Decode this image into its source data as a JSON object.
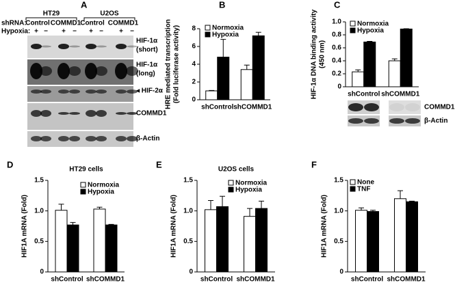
{
  "blot": {
    "panel": "A",
    "cell_lines": [
      "HT29",
      "U2OS"
    ],
    "shrna_label": "shRNA:",
    "shrna": [
      "Control",
      "COMMD1",
      "Control",
      "COMMD1"
    ],
    "hypoxia_label": "Hypoxia:",
    "hypoxia": [
      "+",
      "−",
      "+",
      "−",
      "+",
      "−",
      "+",
      "−"
    ],
    "bands": [
      [
        "HIF-1α",
        "(short)"
      ],
      [
        "HIF-1α",
        "(long)"
      ],
      [
        "◂ HIF-2α"
      ],
      [
        "COMMD1"
      ],
      [
        "β-Actin"
      ]
    ]
  },
  "chart_data": [
    {
      "type": "bar",
      "panel": "B",
      "y_label": [
        "HRE mediated transcription",
        "(Fold luciferase activity)"
      ],
      "categories": [
        "shControl",
        "shCOMMD1"
      ],
      "ylim": [
        0,
        8
      ],
      "yticks": [
        0,
        2,
        4,
        6,
        8
      ],
      "series": [
        {
          "name": "Normoxia",
          "color": "#ffffff",
          "values": [
            1.0,
            3.4
          ],
          "errors": [
            0.05,
            0.5
          ]
        },
        {
          "name": "Hypoxia",
          "color": "#000000",
          "values": [
            4.8,
            7.2
          ],
          "errors": [
            2.0,
            0.4
          ]
        }
      ]
    },
    {
      "type": "bar",
      "panel": "C",
      "y_label": [
        "HIF-1α DNA binding activity",
        "(450 nm)"
      ],
      "categories": [
        "shControl",
        "shCOMMD1"
      ],
      "ylim": [
        0,
        1
      ],
      "yticks": [
        0,
        {
          "value": 0.2,
          "label": "0.2"
        },
        {
          "value": 0.4,
          "label": "0.4"
        },
        {
          "value": 0.6,
          "label": "0.6"
        },
        {
          "value": 0.8,
          "label": "0.8"
        },
        {
          "value": 1,
          "label": "1.0"
        }
      ],
      "series": [
        {
          "name": "Normoxia",
          "color": "#ffffff",
          "values": [
            0.23,
            0.4
          ],
          "errors": [
            0.03,
            0.03
          ]
        },
        {
          "name": "Hypoxia",
          "color": "#000000",
          "values": [
            0.69,
            0.89
          ],
          "errors": [
            0.01,
            0.005
          ]
        }
      ],
      "blot_labels": [
        "COMMD1",
        "β-Actin"
      ]
    },
    {
      "type": "bar",
      "panel": "D",
      "title": "HT29 cells",
      "y_label": [
        "HIF1A mRNA (Fold)"
      ],
      "categories": [
        "shControl",
        "shCOMMD1"
      ],
      "ylim": [
        0,
        1.5
      ],
      "yticks": [
        0,
        0.5,
        {
          "value": 1,
          "label": "1.0"
        },
        1.5
      ],
      "series": [
        {
          "name": "Normoxia",
          "color": "#ffffff",
          "values": [
            1.01,
            1.03
          ],
          "errors": [
            0.1,
            0.03
          ]
        },
        {
          "name": "Hypoxia",
          "color": "#000000",
          "values": [
            0.77,
            0.77
          ],
          "errors": [
            0.04,
            0.01
          ]
        }
      ]
    },
    {
      "type": "bar",
      "panel": "E",
      "title": "U2OS cells",
      "y_label": [
        "HIF1A mRNA (Fold)"
      ],
      "categories": [
        "shControl",
        "shCOMMD1"
      ],
      "ylim": [
        0,
        1.5
      ],
      "yticks": [
        0,
        0.5,
        {
          "value": 1,
          "label": "1.0"
        },
        1.5
      ],
      "series": [
        {
          "name": "Normoxia",
          "color": "#ffffff",
          "values": [
            1.02,
            0.91
          ],
          "errors": [
            0.15,
            0.13
          ]
        },
        {
          "name": "Hypoxia",
          "color": "#000000",
          "values": [
            1.07,
            1.04
          ],
          "errors": [
            0.17,
            0.12
          ]
        }
      ]
    },
    {
      "type": "bar",
      "panel": "F",
      "y_label": [
        "HIF1A mRNA (Fold)"
      ],
      "categories": [
        "shControl",
        "shCOMMD1"
      ],
      "ylim": [
        0,
        1.5
      ],
      "yticks": [
        0,
        0.5,
        {
          "value": 1,
          "label": "1.0"
        },
        1.5
      ],
      "series": [
        {
          "name": "None",
          "color": "#ffffff",
          "values": [
            1.01,
            1.2
          ],
          "errors": [
            0.04,
            0.13
          ]
        },
        {
          "name": "TNF",
          "color": "#000000",
          "values": [
            0.99,
            1.15
          ],
          "errors": [
            0.02,
            0.01
          ]
        }
      ]
    }
  ]
}
